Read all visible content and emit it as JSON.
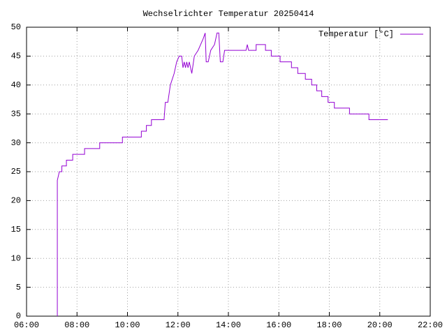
{
  "chart_data": {
    "type": "line",
    "title": "Wechselrichter Temperatur 20250414",
    "xlim": [
      6,
      22
    ],
    "ylim": [
      0,
      50
    ],
    "xticks": [
      {
        "value": 6,
        "label": "06:00"
      },
      {
        "value": 8,
        "label": "08:00"
      },
      {
        "value": 10,
        "label": "10:00"
      },
      {
        "value": 12,
        "label": "12:00"
      },
      {
        "value": 14,
        "label": "14:00"
      },
      {
        "value": 16,
        "label": "16:00"
      },
      {
        "value": 18,
        "label": "18:00"
      },
      {
        "value": 20,
        "label": "20:00"
      },
      {
        "value": 22,
        "label": "22:00"
      }
    ],
    "yticks": [
      0,
      5,
      10,
      15,
      20,
      25,
      30,
      35,
      40,
      45,
      50
    ],
    "grid": true,
    "legend": "top-right",
    "series": [
      {
        "name": "Temperatur [°C]",
        "color": "#9400d3",
        "x": [
          7.22,
          7.22,
          7.3,
          7.4,
          7.4,
          7.58,
          7.58,
          7.83,
          7.83,
          8.3,
          8.3,
          8.9,
          8.9,
          9.8,
          9.8,
          10.55,
          10.55,
          10.75,
          10.75,
          10.95,
          10.95,
          11.45,
          11.5,
          11.6,
          11.7,
          11.85,
          11.95,
          12.05,
          12.15,
          12.2,
          12.25,
          12.3,
          12.35,
          12.4,
          12.45,
          12.55,
          12.65,
          12.8,
          12.9,
          13.0,
          13.08,
          13.12,
          13.2,
          13.3,
          13.45,
          13.55,
          13.62,
          13.68,
          13.78,
          13.85,
          14.7,
          14.75,
          14.8,
          15.1,
          15.1,
          15.47,
          15.47,
          15.7,
          15.7,
          16.05,
          16.05,
          16.5,
          16.5,
          16.75,
          16.75,
          17.05,
          17.05,
          17.3,
          17.3,
          17.5,
          17.5,
          17.7,
          17.7,
          17.95,
          17.95,
          18.2,
          18.2,
          18.8,
          18.8,
          19.57,
          19.57,
          20.32
        ],
        "values": [
          0,
          23.5,
          25,
          25,
          26,
          26,
          27,
          27,
          28,
          28,
          29,
          29,
          30,
          30,
          31,
          31,
          32,
          32,
          33,
          33,
          34,
          34,
          37,
          37,
          40,
          42,
          44,
          45,
          45,
          43,
          44,
          43,
          44,
          43,
          44,
          42,
          45,
          46,
          47,
          48,
          49,
          44,
          44,
          46,
          47,
          49,
          49,
          44,
          44,
          46,
          46,
          47,
          46,
          46,
          47,
          47,
          46,
          46,
          45,
          45,
          44,
          44,
          43,
          43,
          42,
          42,
          41,
          41,
          40,
          40,
          39,
          39,
          38,
          38,
          37,
          37,
          36,
          36,
          35,
          35,
          34,
          34
        ]
      }
    ]
  }
}
